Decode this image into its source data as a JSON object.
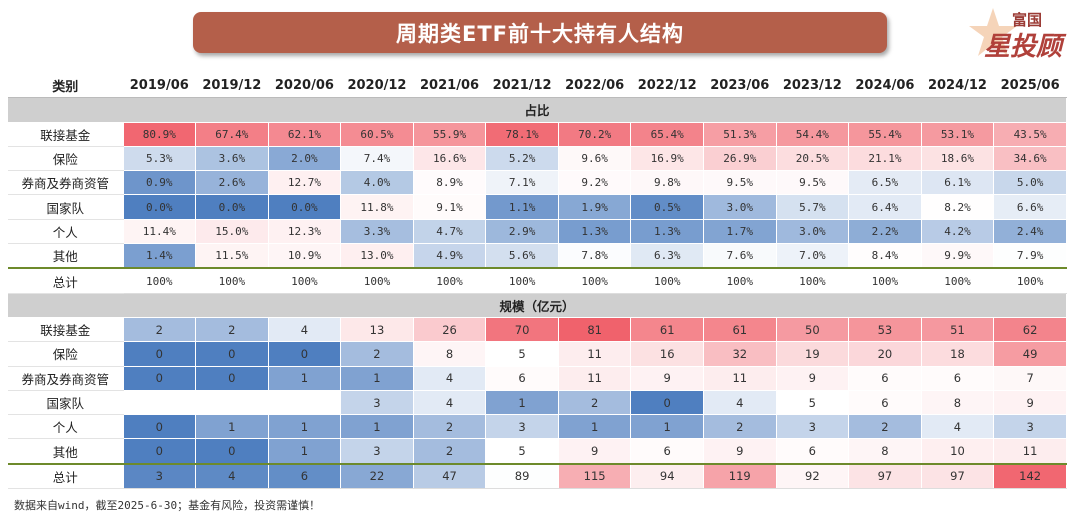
{
  "title": "周期类ETF前十大持有人结构",
  "logo": {
    "line1": "富国",
    "line2": "星投顾"
  },
  "footer": "数据来自wind，截至2025-6-30；基金有风险，投资需谨慎！",
  "colors": {
    "title_bg": "#b45f4a",
    "high": "#f0606a",
    "low": "#4f7fc0",
    "divider": "#6d8a2b",
    "section_bg": "#cfcfcf"
  },
  "chart_data": {
    "type": "table",
    "corner_label": "类别",
    "columns": [
      "2019/06",
      "2019/12",
      "2020/06",
      "2020/12",
      "2021/06",
      "2021/12",
      "2022/06",
      "2022/12",
      "2023/06",
      "2023/12",
      "2024/06",
      "2024/12",
      "2025/06"
    ],
    "sections": [
      {
        "label": "占比",
        "kind": "share",
        "rows": [
          {
            "name": "联接基金",
            "values": [
              "80.9%",
              "67.4%",
              "62.1%",
              "60.5%",
              "55.9%",
              "78.1%",
              "70.2%",
              "65.4%",
              "51.3%",
              "54.4%",
              "55.4%",
              "53.1%",
              "43.5%"
            ]
          },
          {
            "name": "保险",
            "values": [
              "5.3%",
              "3.6%",
              "2.0%",
              "7.4%",
              "16.6%",
              "5.2%",
              "9.6%",
              "16.9%",
              "26.9%",
              "20.5%",
              "21.1%",
              "18.6%",
              "34.6%"
            ]
          },
          {
            "name": "券商及券商资管",
            "values": [
              "0.9%",
              "2.6%",
              "12.7%",
              "4.0%",
              "8.9%",
              "7.1%",
              "9.2%",
              "9.8%",
              "9.5%",
              "9.5%",
              "6.5%",
              "6.1%",
              "5.0%"
            ]
          },
          {
            "name": "国家队",
            "values": [
              "0.0%",
              "0.0%",
              "0.0%",
              "11.8%",
              "9.1%",
              "1.1%",
              "1.9%",
              "0.5%",
              "3.0%",
              "5.7%",
              "6.4%",
              "8.2%",
              "6.6%"
            ]
          },
          {
            "name": "个人",
            "values": [
              "11.4%",
              "15.0%",
              "12.3%",
              "3.3%",
              "4.7%",
              "2.9%",
              "1.3%",
              "1.3%",
              "1.7%",
              "3.0%",
              "2.2%",
              "4.2%",
              "2.4%"
            ]
          },
          {
            "name": "其他",
            "values": [
              "1.4%",
              "11.5%",
              "10.9%",
              "13.0%",
              "4.9%",
              "5.6%",
              "7.8%",
              "6.3%",
              "7.6%",
              "7.0%",
              "8.4%",
              "9.9%",
              "7.9%"
            ]
          }
        ],
        "total": {
          "name": "总计",
          "values": [
            "100%",
            "100%",
            "100%",
            "100%",
            "100%",
            "100%",
            "100%",
            "100%",
            "100%",
            "100%",
            "100%",
            "100%",
            "100%"
          ]
        }
      },
      {
        "label": "规模（亿元）",
        "kind": "size",
        "rows": [
          {
            "name": "联接基金",
            "values": [
              "2",
              "2",
              "4",
              "13",
              "26",
              "70",
              "81",
              "61",
              "61",
              "50",
              "53",
              "51",
              "62"
            ]
          },
          {
            "name": "保险",
            "values": [
              "0",
              "0",
              "0",
              "2",
              "8",
              "5",
              "11",
              "16",
              "32",
              "19",
              "20",
              "18",
              "49"
            ]
          },
          {
            "name": "券商及券商资管",
            "values": [
              "0",
              "0",
              "1",
              "1",
              "4",
              "6",
              "11",
              "9",
              "11",
              "9",
              "6",
              "6",
              "7"
            ]
          },
          {
            "name": "国家队",
            "values": [
              "",
              "",
              "",
              "3",
              "4",
              "1",
              "2",
              "0",
              "4",
              "5",
              "6",
              "8",
              "9"
            ]
          },
          {
            "name": "个人",
            "values": [
              "0",
              "1",
              "1",
              "1",
              "2",
              "3",
              "1",
              "1",
              "2",
              "3",
              "2",
              "4",
              "3"
            ]
          },
          {
            "name": "其他",
            "values": [
              "0",
              "0",
              "1",
              "3",
              "2",
              "5",
              "9",
              "6",
              "9",
              "6",
              "8",
              "10",
              "11"
            ]
          }
        ],
        "total": {
          "name": "总计",
          "values": [
            "3",
            "4",
            "6",
            "22",
            "47",
            "89",
            "115",
            "94",
            "119",
            "92",
            "97",
            "97",
            "142"
          ]
        }
      }
    ]
  }
}
